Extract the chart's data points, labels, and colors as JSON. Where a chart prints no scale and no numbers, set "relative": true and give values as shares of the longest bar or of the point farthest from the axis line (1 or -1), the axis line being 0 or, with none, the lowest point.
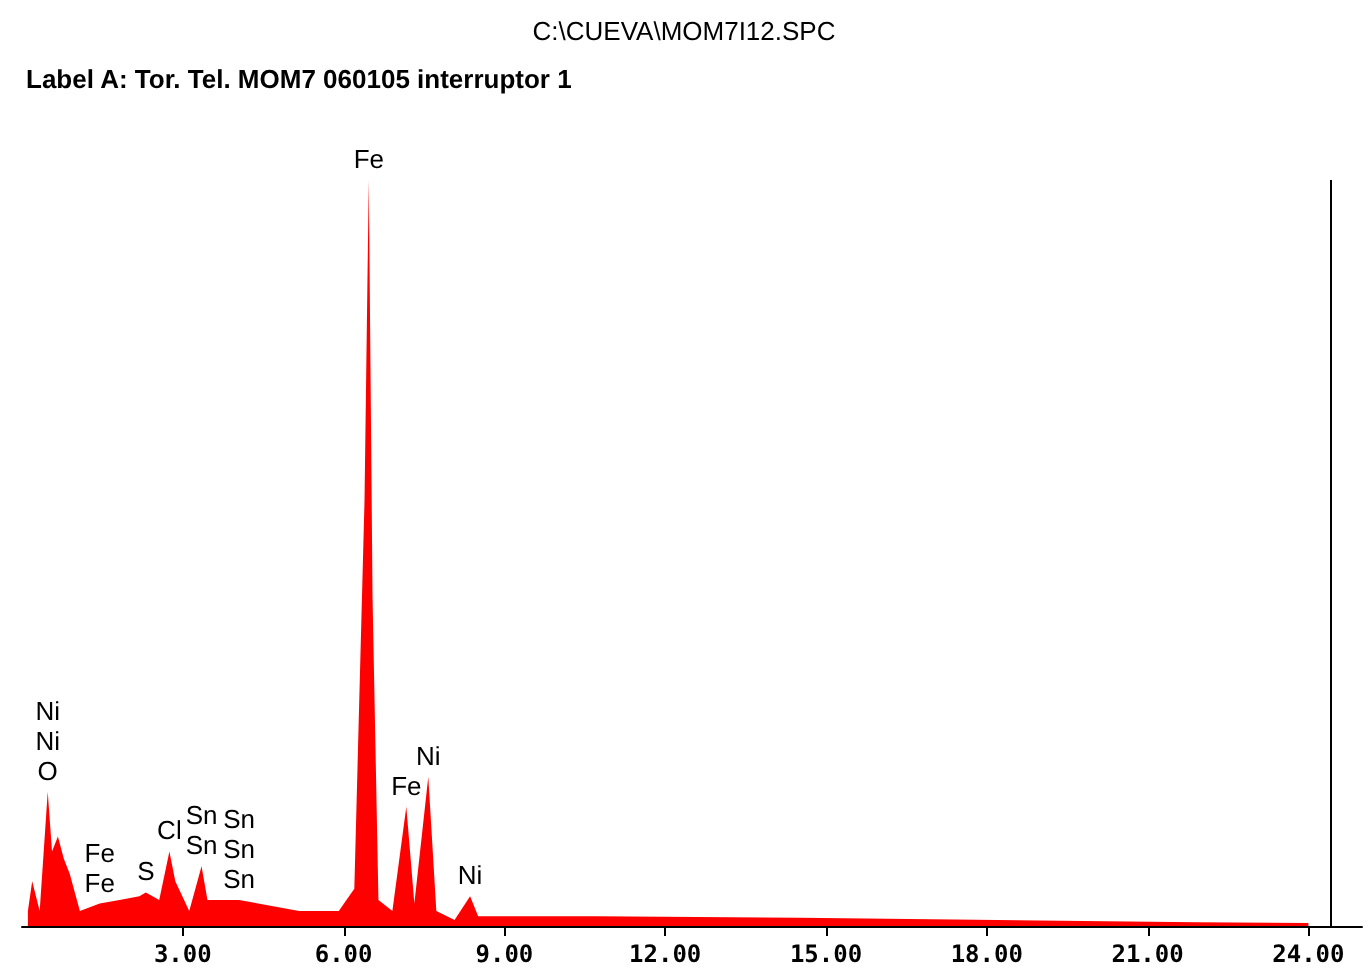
{
  "chart_data": {
    "type": "area",
    "title": "C:\\CUEVA\\MOM7I12.SPC",
    "subtitle": "Label A: Tor. Tel. MOM7 060105 interruptor 1",
    "relative": true,
    "grid": false,
    "marker": "none",
    "x": [
      0.11,
      0.19,
      0.33,
      0.48,
      0.56,
      0.67,
      0.78,
      0.89,
      1.08,
      1.45,
      1.82,
      2.19,
      2.31,
      2.56,
      2.75,
      2.86,
      3.12,
      3.35,
      3.46,
      4.05,
      5.17,
      5.91,
      6.2,
      6.39,
      6.47,
      6.54,
      6.65,
      6.91,
      7.17,
      7.32,
      7.58,
      7.73,
      8.07,
      8.36,
      8.51,
      10.7,
      14.5,
      18.2,
      21.9,
      24.0
    ],
    "series": [
      {
        "color": "#ff0000",
        "values": [
          0.02,
          0.06,
          0.02,
          0.18,
          0.1,
          0.12,
          0.09,
          0.07,
          0.02,
          0.03,
          0.035,
          0.04,
          0.045,
          0.035,
          0.1,
          0.06,
          0.02,
          0.08,
          0.035,
          0.035,
          0.02,
          0.02,
          0.05,
          0.57,
          1.0,
          0.44,
          0.035,
          0.02,
          0.16,
          0.03,
          0.2,
          0.02,
          0.008,
          0.04,
          0.013,
          0.013,
          0.011,
          0.008,
          0.005,
          0.004
        ]
      }
    ],
    "xlim": [
      0,
      25
    ],
    "xticks": [
      {
        "value": 3,
        "label": "3.00"
      },
      {
        "value": 6,
        "label": "6.00"
      },
      {
        "value": 9,
        "label": "9.00"
      },
      {
        "value": 12,
        "label": "12.00"
      },
      {
        "value": 15,
        "label": "15.00"
      },
      {
        "value": 18,
        "label": "18.00"
      },
      {
        "value": 21,
        "label": "21.00"
      },
      {
        "value": 24,
        "label": "24.00"
      }
    ],
    "ref_lines": [
      {
        "axis": "x",
        "value": 24.4,
        "label": null,
        "color": "#000000"
      }
    ],
    "annotations": [
      {
        "text": "O",
        "x": 0.48,
        "y": 0.18
      },
      {
        "text": "Ni",
        "x": 0.48,
        "y": 0.18
      },
      {
        "text": "Ni",
        "x": 0.48,
        "y": 0.18
      },
      {
        "text": "Fe",
        "x": 1.45,
        "y": 0.03
      },
      {
        "text": "Fe",
        "x": 1.45,
        "y": 0.03
      },
      {
        "text": "S",
        "x": 2.31,
        "y": 0.045
      },
      {
        "text": "Cl",
        "x": 2.75,
        "y": 0.1
      },
      {
        "text": "Sn",
        "x": 4.05,
        "y": 0.035
      },
      {
        "text": "Sn",
        "x": 3.35,
        "y": 0.08
      },
      {
        "text": "Sn",
        "x": 4.05,
        "y": 0.035
      },
      {
        "text": "Sn",
        "x": 3.35,
        "y": 0.08
      },
      {
        "text": "Sn",
        "x": 4.05,
        "y": 0.035
      },
      {
        "text": "Fe",
        "x": 6.47,
        "y": 1.0
      },
      {
        "text": "Fe",
        "x": 7.17,
        "y": 0.16
      },
      {
        "text": "Ni",
        "x": 7.58,
        "y": 0.2
      },
      {
        "text": "Ni",
        "x": 8.36,
        "y": 0.04
      }
    ]
  }
}
